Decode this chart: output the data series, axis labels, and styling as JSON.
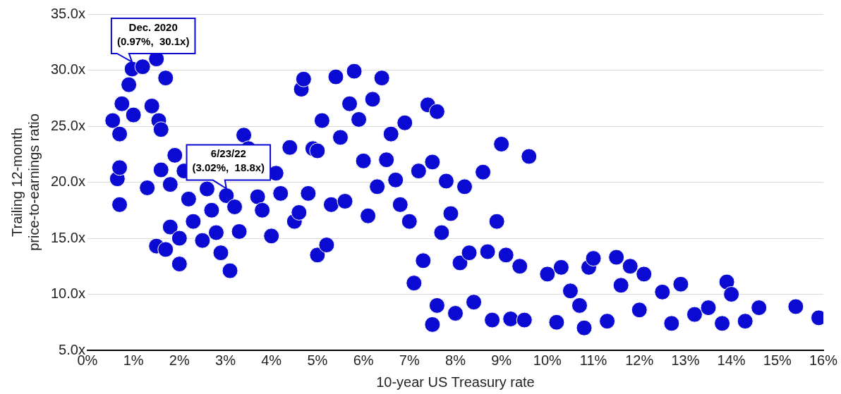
{
  "chart_data": {
    "type": "scatter",
    "xlabel": "10-year US Treasury rate",
    "ylabel": "Trailing 12-month\nprice-to-earnings ratio",
    "xlim": [
      0,
      16
    ],
    "xticks": [
      {
        "value": 0,
        "label": "0%"
      },
      {
        "value": 1,
        "label": "1%"
      },
      {
        "value": 2,
        "label": "2%"
      },
      {
        "value": 3,
        "label": "3%"
      },
      {
        "value": 4,
        "label": "4%"
      },
      {
        "value": 5,
        "label": "5%"
      },
      {
        "value": 6,
        "label": "6%"
      },
      {
        "value": 7,
        "label": "7%"
      },
      {
        "value": 8,
        "label": "8%"
      },
      {
        "value": 9,
        "label": "9%"
      },
      {
        "value": 10,
        "label": "10%"
      },
      {
        "value": 11,
        "label": "11%"
      },
      {
        "value": 12,
        "label": "12%"
      },
      {
        "value": 13,
        "label": "13%"
      },
      {
        "value": 14,
        "label": "14%"
      },
      {
        "value": 15,
        "label": "15%"
      },
      {
        "value": 16,
        "label": "16%"
      }
    ],
    "ylim": [
      5,
      35
    ],
    "yticks": [
      {
        "value": 5,
        "label": "5.0x"
      },
      {
        "value": 10,
        "label": "10.0x"
      },
      {
        "value": 15,
        "label": "15.0x"
      },
      {
        "value": 20,
        "label": "20.0x"
      },
      {
        "value": 25,
        "label": "25.0x"
      },
      {
        "value": 30,
        "label": "30.0x"
      },
      {
        "value": 35,
        "label": "35.0x"
      }
    ],
    "grid": "y",
    "legend": false,
    "marker": "circle",
    "annotations": [
      {
        "text": "Dec. 2020\n(0.97%,  30.1x)",
        "x": 0.97,
        "y": 30.1
      },
      {
        "text": "6/23/22\n(3.02%,  18.8x)",
        "x": 3.02,
        "y": 18.8
      }
    ],
    "series": [
      {
        "color": "#0a0ad2",
        "x": [
          0.55,
          0.65,
          0.7,
          0.7,
          0.7,
          0.75,
          0.9,
          0.97,
          1.0,
          1.2,
          1.3,
          1.4,
          1.5,
          1.55,
          1.6,
          1.7,
          1.6,
          1.5,
          1.7,
          1.8,
          1.9,
          1.8,
          2.0,
          2.1,
          2.0,
          2.2,
          2.3,
          2.5,
          2.6,
          2.7,
          2.8,
          2.9,
          3.02,
          3.1,
          3.2,
          3.3,
          3.4,
          3.5,
          3.7,
          3.8,
          4.0,
          4.1,
          4.2,
          4.4,
          4.5,
          4.6,
          4.65,
          4.7,
          4.8,
          4.9,
          5.0,
          5.0,
          5.1,
          5.2,
          5.3,
          5.4,
          5.5,
          5.6,
          5.7,
          5.8,
          5.9,
          6.0,
          6.1,
          6.2,
          6.3,
          6.4,
          6.5,
          6.6,
          6.7,
          6.8,
          6.9,
          7.0,
          7.1,
          7.2,
          7.3,
          7.4,
          7.5,
          7.6,
          7.7,
          7.6,
          7.5,
          7.8,
          7.9,
          8.0,
          8.1,
          8.2,
          8.3,
          8.4,
          8.6,
          8.7,
          8.8,
          8.9,
          9.0,
          9.1,
          9.2,
          9.4,
          9.5,
          9.6,
          10.0,
          10.2,
          10.3,
          10.5,
          10.7,
          10.8,
          10.9,
          11.0,
          11.3,
          11.5,
          11.6,
          11.8,
          12.0,
          12.1,
          12.5,
          12.7,
          12.9,
          13.2,
          13.5,
          13.8,
          13.9,
          14.0,
          14.3,
          14.6,
          15.4,
          15.9
        ],
        "values": [
          25.5,
          20.3,
          18,
          21.3,
          24.3,
          27,
          28.7,
          30.1,
          26,
          30.3,
          19.5,
          26.8,
          31,
          25.5,
          24.7,
          29.3,
          21.1,
          14.3,
          14,
          16,
          22.4,
          19.8,
          12.7,
          21,
          15,
          18.5,
          16.5,
          14.8,
          19.4,
          17.5,
          15.5,
          13.7,
          18.8,
          12.1,
          17.8,
          15.6,
          24.2,
          23,
          18.7,
          17.5,
          15.2,
          20.8,
          19,
          23.1,
          16.5,
          17.3,
          28.3,
          29.2,
          19,
          23,
          13.5,
          22.8,
          25.5,
          14.4,
          18,
          29.4,
          24,
          18.3,
          27,
          29.9,
          25.6,
          21.9,
          17,
          27.4,
          19.6,
          29.3,
          22,
          24.3,
          20.2,
          18,
          25.3,
          16.5,
          11,
          21,
          13,
          26.9,
          21.8,
          26.3,
          15.5,
          9,
          7.3,
          20.1,
          17.2,
          8.3,
          12.8,
          19.6,
          13.7,
          9.3,
          20.9,
          13.8,
          7.7,
          16.5,
          23.4,
          13.5,
          7.8,
          12.5,
          7.7,
          22.3,
          11.8,
          7.5,
          12.4,
          10.3,
          9,
          7,
          12.4,
          13.2,
          7.6,
          13.3,
          10.8,
          12.5,
          8.6,
          11.8,
          10.2,
          7.4,
          10.9,
          8.2,
          8.8,
          7.4,
          11.1,
          10,
          7.6,
          8.8,
          8.9,
          7.9
        ]
      }
    ]
  }
}
